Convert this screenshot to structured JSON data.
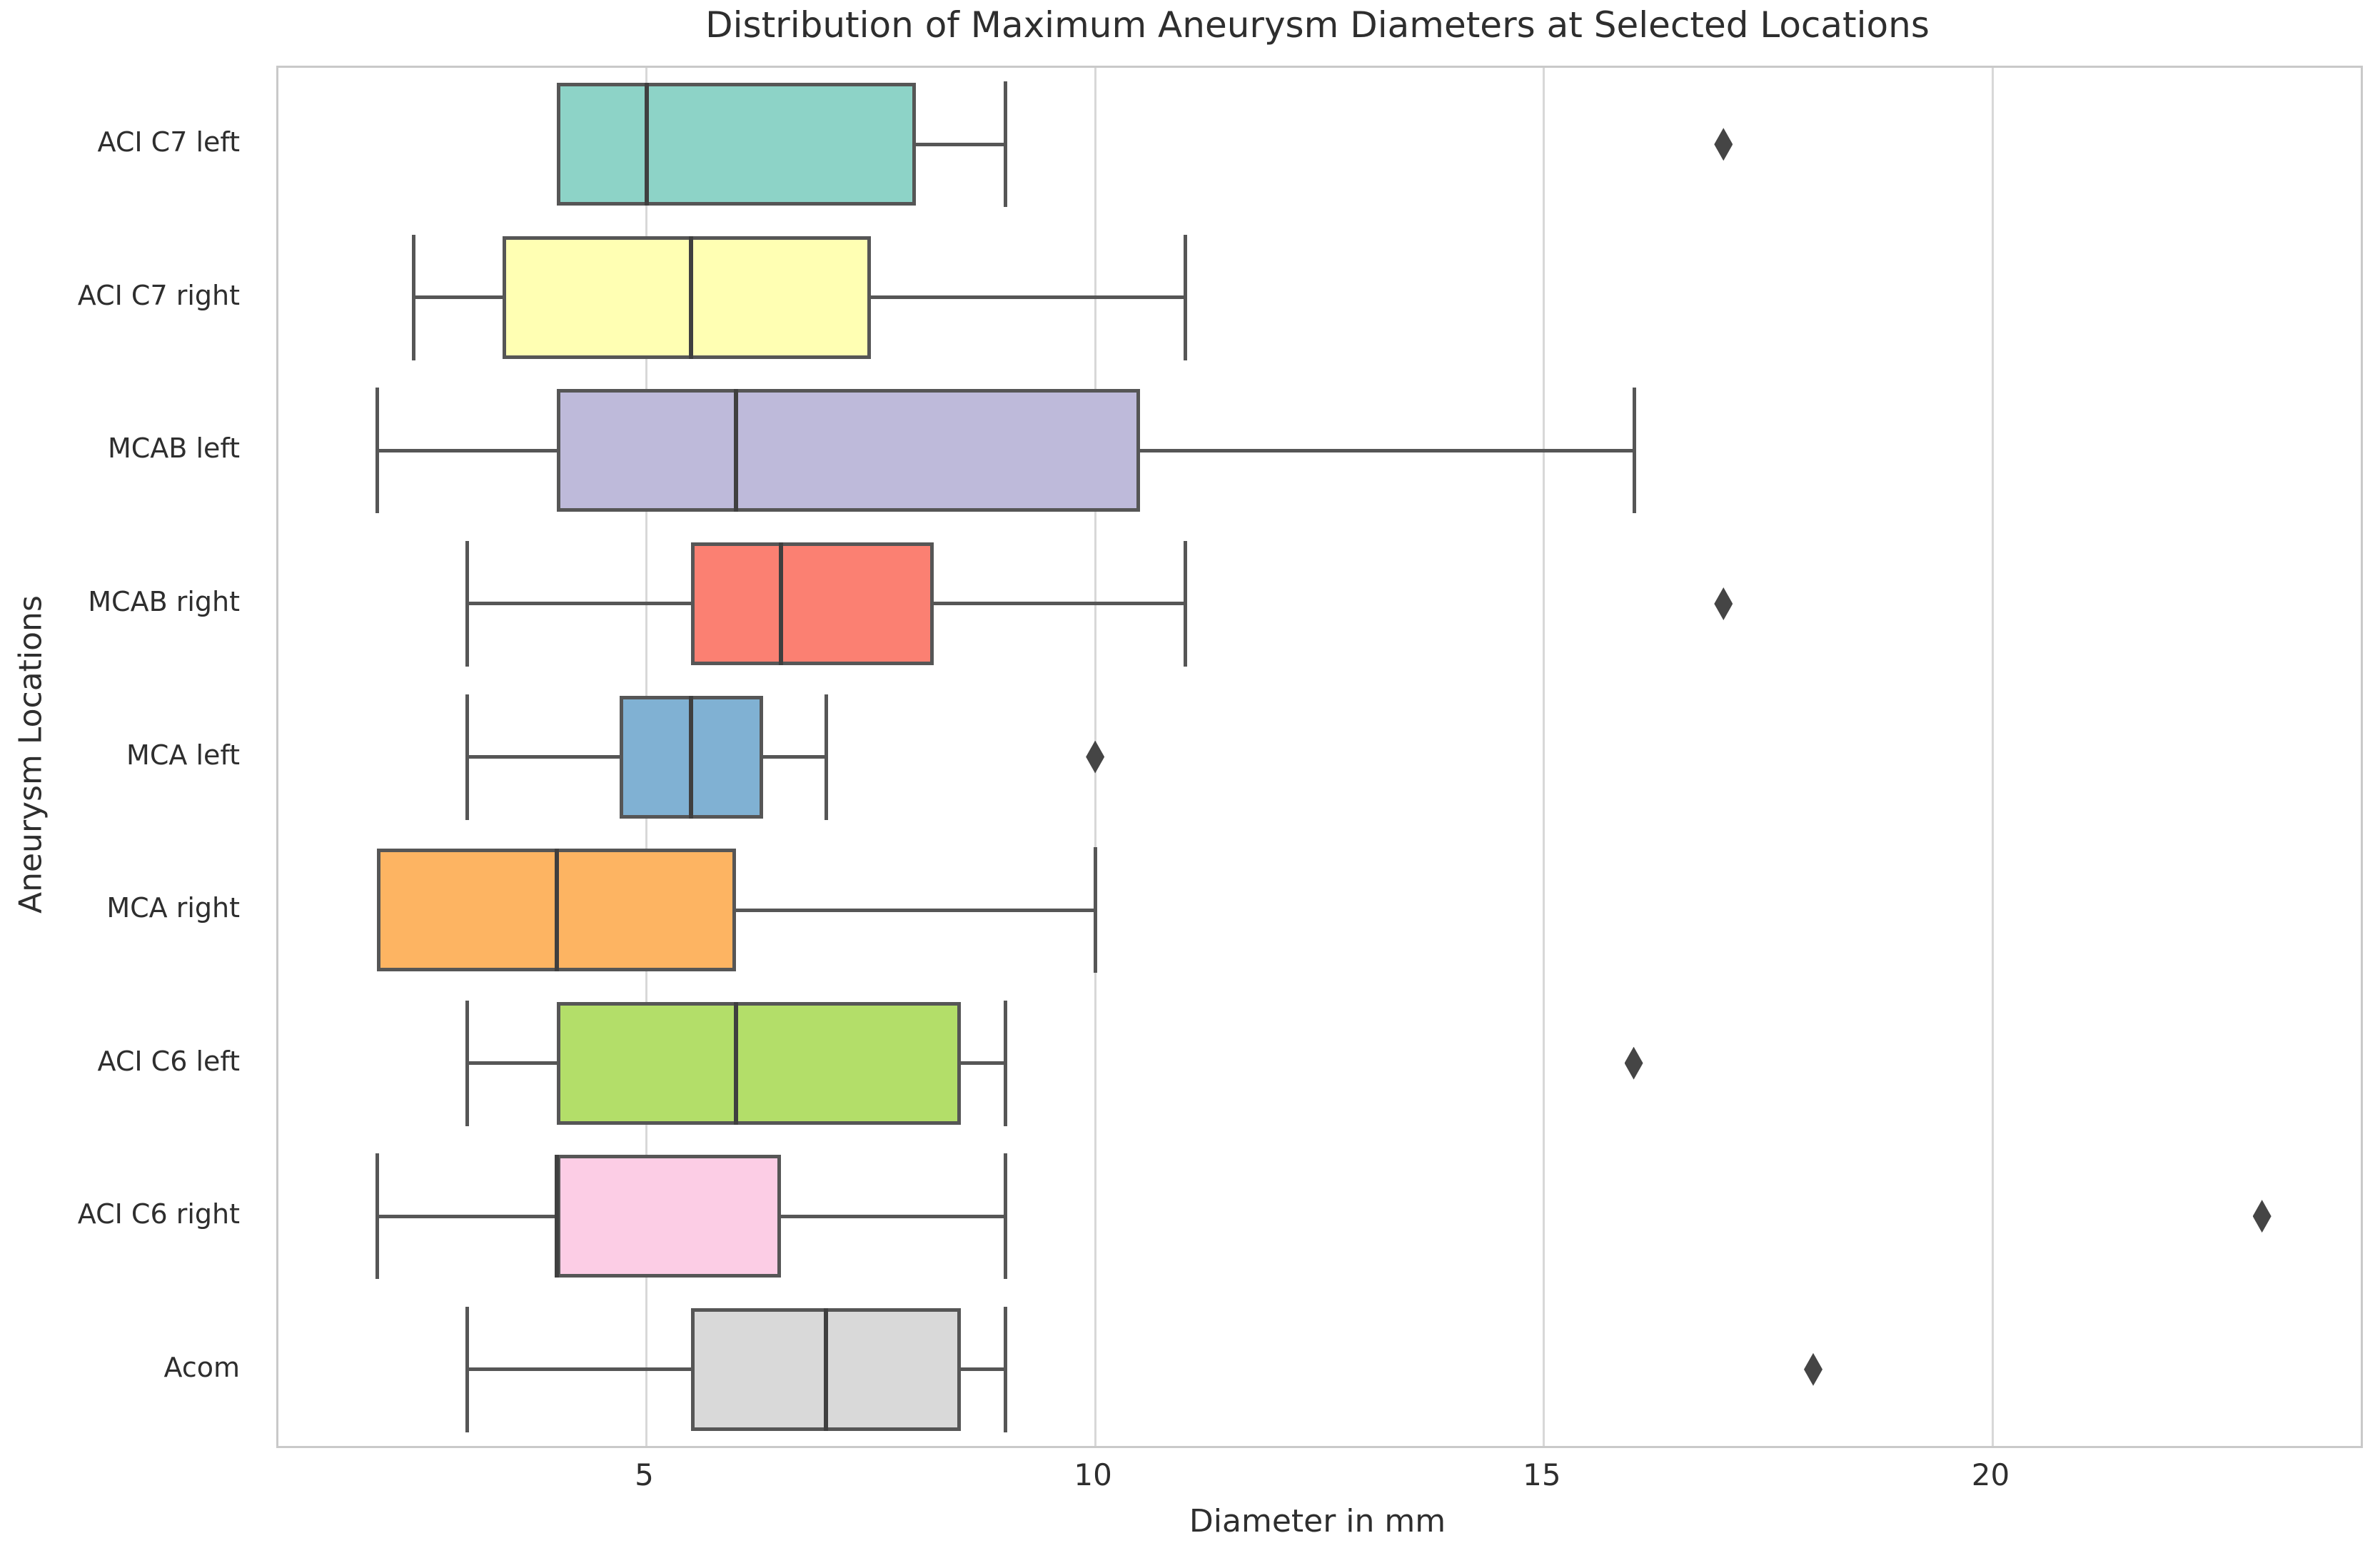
{
  "chart_data": {
    "type": "boxplot",
    "orientation": "horizontal",
    "title": "Distribution of Maximum Aneurysm Diameters at Selected Locations",
    "xlabel": "Diameter in mm",
    "ylabel": "Aneurysm Locations",
    "xlim": [
      0.9,
      24.1
    ],
    "x_ticks": [
      5,
      10,
      15,
      20
    ],
    "grid": "vertical-only",
    "legend": "none",
    "palette_name": "Set3",
    "categories": [
      "ACI C7 left",
      "ACI C7 right",
      "MCAB left",
      "MCAB right",
      "MCA left",
      "MCA right",
      "ACI C6 left",
      "ACI C6 right",
      "Acom"
    ],
    "series": [
      {
        "label": "ACI C7 left",
        "color": "#8dd3c7",
        "whisker_low": 4,
        "q1": 4,
        "median": 5,
        "q3": 8,
        "whisker_high": 9,
        "outliers": [
          17
        ]
      },
      {
        "label": "ACI C7 right",
        "color": "#ffffb3",
        "whisker_low": 2.4,
        "q1": 3.4,
        "median": 5.5,
        "q3": 7.5,
        "whisker_high": 11,
        "outliers": []
      },
      {
        "label": "MCAB left",
        "color": "#bebada",
        "whisker_low": 2,
        "q1": 4,
        "median": 6,
        "q3": 10.5,
        "whisker_high": 16,
        "outliers": []
      },
      {
        "label": "MCAB right",
        "color": "#fb8072",
        "whisker_low": 3,
        "q1": 5.5,
        "median": 6.5,
        "q3": 8.2,
        "whisker_high": 11,
        "outliers": [
          17
        ]
      },
      {
        "label": "MCA left",
        "color": "#80b1d3",
        "whisker_low": 3,
        "q1": 4.7,
        "median": 5.5,
        "q3": 6.3,
        "whisker_high": 7,
        "outliers": [
          10
        ]
      },
      {
        "label": "MCA right",
        "color": "#fdb462",
        "whisker_low": 2,
        "q1": 2,
        "median": 4,
        "q3": 6,
        "whisker_high": 10,
        "outliers": []
      },
      {
        "label": "ACI C6 left",
        "color": "#b3de69",
        "whisker_low": 3,
        "q1": 4,
        "median": 6,
        "q3": 8.5,
        "whisker_high": 9,
        "outliers": [
          16
        ]
      },
      {
        "label": "ACI C6 right",
        "color": "#fccde5",
        "whisker_low": 2,
        "q1": 4,
        "median": 4,
        "q3": 6.5,
        "whisker_high": 9,
        "outliers": [
          23
        ]
      },
      {
        "label": "Acom",
        "color": "#d9d9d9",
        "whisker_low": 3,
        "q1": 5.5,
        "median": 7,
        "q3": 8.5,
        "whisker_high": 9,
        "outliers": [
          18
        ]
      }
    ],
    "colors": {
      "background": "#ffffff",
      "box_edge": "#565656",
      "median": "#3f3f3f",
      "whisker": "#565656",
      "grid": "#d8d8d8",
      "spine": "#c9c9c9",
      "text": "#2e2e2e",
      "outlier": "#454545"
    }
  }
}
